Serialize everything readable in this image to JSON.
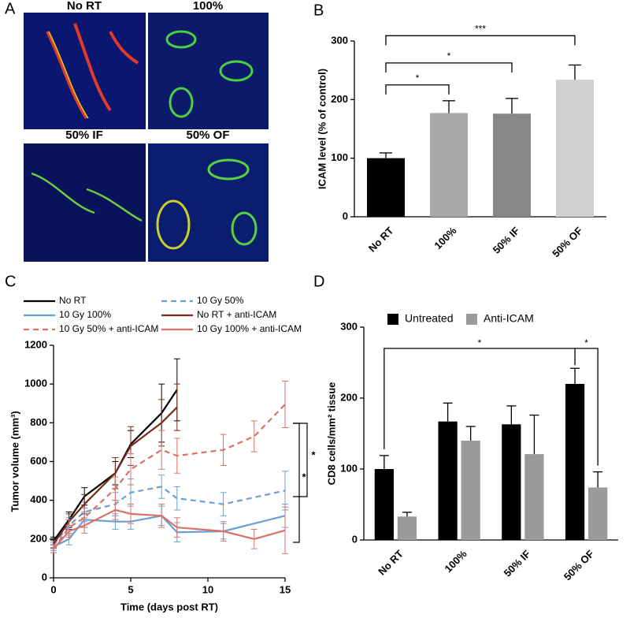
{
  "panel_labels": [
    "A",
    "B",
    "C",
    "D"
  ],
  "images": {
    "labels": [
      "No RT",
      "100%",
      "50% IF",
      "50% OF"
    ]
  },
  "chart_data": [
    {
      "type": "bar",
      "ylabel": "ICAM level (% of control)",
      "categories": [
        "No RT",
        "100%",
        "50% IF",
        "50% OF"
      ],
      "values": [
        100,
        177,
        176,
        234
      ],
      "errors": [
        9,
        21,
        26,
        25
      ],
      "colors": [
        "#000000",
        "#a8a8a8",
        "#878787",
        "#d0d0d0"
      ],
      "ylim": [
        0,
        300
      ],
      "yticks": [
        0,
        100,
        200,
        300
      ],
      "annotations": [
        "*",
        "*",
        "***"
      ]
    },
    {
      "type": "line",
      "xlabel": "Time (days post RT)",
      "ylabel": "Tumor volume (mm³)",
      "series": [
        {
          "name": "No RT",
          "color": "#000000",
          "dashed": false,
          "x": [
            0,
            1,
            2,
            4,
            5,
            7,
            8
          ],
          "values": [
            190,
            300,
            420,
            540,
            690,
            850,
            970
          ],
          "errors": [
            20,
            40,
            45,
            60,
            70,
            150,
            160
          ]
        },
        {
          "name": "10 Gy 50%",
          "color": "#6a9fd4",
          "dashed": true,
          "x": [
            0,
            1,
            2,
            4,
            5,
            7,
            8,
            11,
            15
          ],
          "values": [
            170,
            270,
            340,
            380,
            440,
            470,
            410,
            380,
            450
          ],
          "errors": [
            20,
            40,
            50,
            60,
            70,
            60,
            60,
            60,
            100
          ]
        },
        {
          "name": "10 Gy 100%",
          "color": "#6a9fd4",
          "dashed": false,
          "x": [
            0,
            1,
            2,
            4,
            5,
            7,
            8,
            11,
            15
          ],
          "values": [
            160,
            200,
            300,
            290,
            290,
            320,
            235,
            240,
            320
          ],
          "errors": [
            20,
            30,
            40,
            40,
            40,
            50,
            50,
            40,
            60
          ]
        },
        {
          "name": "No RT + anti-ICAM",
          "color": "#7b2a1a",
          "dashed": false,
          "x": [
            0,
            1,
            2,
            4,
            5,
            7,
            8
          ],
          "values": [
            175,
            290,
            380,
            540,
            680,
            800,
            880
          ],
          "errors": [
            20,
            40,
            50,
            80,
            100,
            120,
            120
          ]
        },
        {
          "name": "10 Gy 50% + anti-ICAM",
          "color": "#d9726b",
          "dashed": true,
          "x": [
            0,
            1,
            2,
            4,
            5,
            7,
            8,
            11,
            13,
            15
          ],
          "values": [
            150,
            260,
            310,
            460,
            560,
            660,
            630,
            660,
            730,
            895
          ],
          "errors": [
            20,
            40,
            50,
            60,
            80,
            100,
            90,
            80,
            80,
            120
          ]
        },
        {
          "name": "10 Gy 100% + anti-ICAM",
          "color": "#d9726b",
          "dashed": false,
          "x": [
            0,
            1,
            2,
            4,
            5,
            7,
            8,
            11,
            13,
            15
          ],
          "values": [
            150,
            240,
            270,
            350,
            330,
            320,
            260,
            240,
            200,
            245
          ],
          "errors": [
            20,
            30,
            40,
            50,
            50,
            60,
            50,
            50,
            50,
            120
          ]
        }
      ],
      "xlim": [
        0,
        15
      ],
      "xticks": [
        0,
        5,
        10,
        15
      ],
      "ylim": [
        0,
        1200
      ],
      "yticks": [
        0,
        200,
        400,
        600,
        800,
        1000,
        1200
      ],
      "annotations": [
        "*",
        "*"
      ]
    },
    {
      "type": "bar",
      "ylabel": "CD8 cells/mm² tissue",
      "categories": [
        "No RT",
        "100%",
        "50% IF",
        "50% OF"
      ],
      "series": [
        {
          "name": "Untreated",
          "color": "#000000",
          "values": [
            100,
            167,
            163,
            220
          ],
          "errors": [
            19,
            26,
            26,
            22
          ]
        },
        {
          "name": "Anti-ICAM",
          "color": "#9a9a9a",
          "values": [
            33,
            140,
            121,
            74
          ],
          "errors": [
            6,
            20,
            55,
            22
          ]
        }
      ],
      "ylim": [
        0,
        300
      ],
      "yticks": [
        0,
        100,
        200,
        300
      ],
      "legend": "top",
      "annotations": [
        "*",
        "*"
      ]
    }
  ]
}
